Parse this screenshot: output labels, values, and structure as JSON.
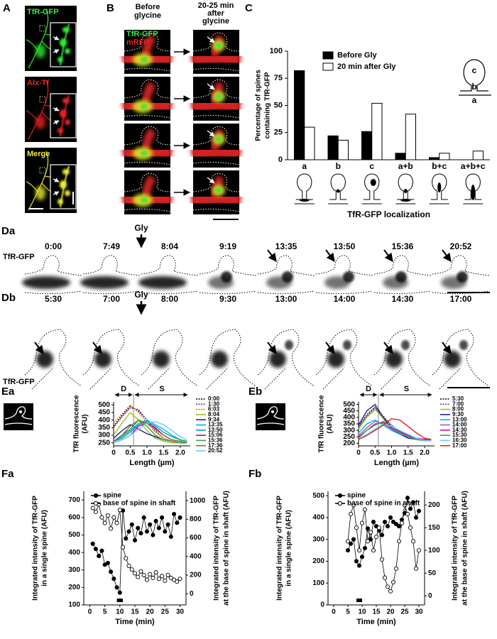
{
  "panels": {
    "A": {
      "label": "A",
      "channels": [
        "TfR-GFP",
        "Alx-Tf",
        "Merge"
      ]
    },
    "B": {
      "label": "B",
      "before": [
        "Before",
        "glycine"
      ],
      "after": [
        "20-25 min",
        "after",
        "glycine"
      ],
      "channels": [
        "TfR-GFP",
        "mRFP"
      ]
    },
    "Da": {
      "label": "Da",
      "times": [
        "0:00",
        "7:49",
        "8:04",
        "9:19",
        "13:35",
        "13:50",
        "15:36",
        "20:52"
      ],
      "treatment": "Gly",
      "channel": "TfR-GFP"
    },
    "Db": {
      "label": "Db",
      "times": [
        "5:30",
        "7:00",
        "8:00",
        "9:30",
        "13:00",
        "14:00",
        "14:30",
        "17:00"
      ],
      "treatment": "Gly",
      "channel": "TfR-GFP"
    }
  },
  "chart_data": [
    {
      "panel": "C",
      "type": "bar",
      "ylabel": [
        "Percentage of spines",
        "containing TfR-GFP"
      ],
      "xlabel": "TfR-GFP localization",
      "categories": [
        "a",
        "b",
        "c",
        "a+b",
        "b+c",
        "a+b+c"
      ],
      "series": [
        {
          "name": "Before Gly",
          "color": "#000000",
          "values": [
            82,
            22,
            26,
            6,
            2,
            0
          ]
        },
        {
          "name": "20 min after Gly",
          "color": "#ffffff",
          "values": [
            30,
            18,
            52,
            42,
            6,
            8
          ]
        }
      ],
      "ylim": [
        0,
        100
      ],
      "yticks": [
        0,
        25,
        50,
        75,
        100
      ],
      "legend": "upper left",
      "annotations": [
        "c",
        "b",
        "a"
      ]
    },
    {
      "panel": "Ea",
      "type": "line",
      "ylabel": [
        "TfR fluorescence",
        "(AFU)"
      ],
      "xlabel": "Length (µm)",
      "x": [
        0,
        0.25,
        0.5,
        0.75,
        1,
        1.25,
        1.5,
        1.75,
        2,
        2.2
      ],
      "series": [
        {
          "name": "0:00",
          "color": "#000000",
          "dashed": true,
          "values": [
            360,
            430,
            490,
            460,
            400,
            330,
            280,
            260,
            250,
            250
          ]
        },
        {
          "name": "1:30",
          "color": "#7030a0",
          "dashed": true,
          "values": [
            350,
            420,
            480,
            470,
            400,
            330,
            280,
            260,
            250,
            250
          ]
        },
        {
          "name": "6:03",
          "color": "#e07b00",
          "dashed": true,
          "values": [
            380,
            440,
            500,
            450,
            380,
            320,
            280,
            260,
            250,
            250
          ]
        },
        {
          "name": "8:04",
          "color": "#a0c020",
          "values": [
            300,
            380,
            450,
            400,
            330,
            280,
            260,
            250,
            250,
            250
          ]
        },
        {
          "name": "9:34",
          "color": "#1f1f9f",
          "values": [
            280,
            330,
            370,
            340,
            310,
            290,
            270,
            260,
            250,
            250
          ]
        },
        {
          "name": "13:35",
          "color": "#00b0f0",
          "values": [
            260,
            290,
            330,
            380,
            400,
            370,
            340,
            300,
            270,
            260
          ]
        },
        {
          "name": "13:50",
          "color": "#00a0a0",
          "values": [
            260,
            280,
            320,
            370,
            390,
            360,
            320,
            290,
            270,
            260
          ]
        },
        {
          "name": "15:06",
          "color": "#c000c0",
          "values": [
            250,
            270,
            300,
            360,
            380,
            350,
            300,
            270,
            260,
            250
          ]
        },
        {
          "name": "15:36",
          "color": "#40a040",
          "values": [
            260,
            300,
            340,
            400,
            360,
            300,
            270,
            260,
            250,
            250
          ]
        },
        {
          "name": "17:36",
          "color": "#8a6d1f",
          "values": [
            260,
            300,
            360,
            400,
            380,
            340,
            300,
            270,
            260,
            250
          ]
        },
        {
          "name": "20:52",
          "color": "#66ccff",
          "values": [
            250,
            270,
            300,
            340,
            380,
            390,
            370,
            330,
            290,
            270
          ]
        }
      ],
      "xlim": [
        0,
        2.3
      ],
      "xticks": [
        0,
        0.5,
        {
          "value": 1,
          "label": "1.0"
        },
        1.5,
        {
          "value": 2,
          "label": "2.0"
        }
      ],
      "ylim": [
        230,
        520
      ],
      "yticks": [
        250,
        300,
        350,
        400,
        450,
        500
      ],
      "divider": 0.6,
      "annotations": [
        "D",
        "S"
      ],
      "legend": "right"
    },
    {
      "panel": "Eb",
      "type": "line",
      "ylabel": [
        "TfR fluorescence",
        "(AFU)"
      ],
      "xlabel": "Length (µm)",
      "x": [
        0,
        0.25,
        0.5,
        0.75,
        1,
        1.25,
        1.5,
        1.75,
        2,
        2.2
      ],
      "series": [
        {
          "name": "5:30",
          "color": "#000000",
          "dashed": true,
          "values": [
            330,
            420,
            480,
            400,
            330,
            290,
            260,
            240,
            230,
            230
          ]
        },
        {
          "name": "7:00",
          "color": "#7030a0",
          "dashed": true,
          "values": [
            320,
            410,
            470,
            410,
            340,
            290,
            260,
            240,
            230,
            230
          ]
        },
        {
          "name": "8:00",
          "color": "#a0c020",
          "values": [
            310,
            400,
            460,
            390,
            320,
            280,
            250,
            240,
            230,
            230
          ]
        },
        {
          "name": "9:30",
          "color": "#1f1f9f",
          "values": [
            340,
            450,
            500,
            400,
            310,
            270,
            240,
            230,
            220,
            220
          ]
        },
        {
          "name": "13:00",
          "color": "#00b0f0",
          "values": [
            280,
            350,
            380,
            340,
            300,
            270,
            250,
            230,
            220,
            220
          ]
        },
        {
          "name": "14:00",
          "color": "#9b59b6",
          "values": [
            260,
            320,
            370,
            350,
            310,
            280,
            260,
            240,
            220,
            220
          ]
        },
        {
          "name": "14:30",
          "color": "#e000a0",
          "values": [
            250,
            300,
            350,
            360,
            320,
            290,
            260,
            240,
            230,
            220
          ]
        },
        {
          "name": "15:30",
          "color": "#40a040",
          "values": [
            240,
            300,
            340,
            370,
            330,
            280,
            250,
            230,
            220,
            220
          ]
        },
        {
          "name": "16:30",
          "color": "#66ccff",
          "values": [
            230,
            270,
            310,
            350,
            330,
            300,
            270,
            240,
            220,
            220
          ]
        },
        {
          "name": "17:00",
          "color": "#e02020",
          "values": [
            230,
            260,
            300,
            340,
            390,
            380,
            330,
            280,
            240,
            230
          ]
        }
      ],
      "xlim": [
        0,
        2.3
      ],
      "xticks": [
        0,
        0.5,
        {
          "value": 1,
          "label": "1.0"
        },
        1.5,
        {
          "value": 2,
          "label": "2.0"
        }
      ],
      "ylim": [
        180,
        520
      ],
      "yticks": [
        200,
        250,
        300,
        350,
        400,
        450,
        500
      ],
      "divider": 0.6,
      "annotations": [
        "D",
        "S"
      ],
      "legend": "right"
    },
    {
      "panel": "Fa",
      "type": "line",
      "ylabel": [
        "Integrated intensity of TfR-GFP",
        "in a single spine (AFU)"
      ],
      "y2label": [
        "Integrated intensity of TfR-GFP",
        "at the base of spine in shaft (AFU)"
      ],
      "xlabel": "Time (min)",
      "x": [
        1,
        2,
        3,
        4,
        5,
        6,
        7,
        8,
        9,
        10,
        11,
        12,
        13,
        14,
        15,
        16,
        17,
        18,
        19,
        20,
        21,
        22,
        23,
        24,
        25,
        26,
        27,
        28,
        29,
        30
      ],
      "series": [
        {
          "name": "spine",
          "color": "#000000",
          "marker": "filled",
          "values": [
            450,
            420,
            380,
            410,
            330,
            340,
            290,
            250,
            200,
            170,
            640,
            480,
            520,
            560,
            470,
            540,
            510,
            600,
            520,
            560,
            500,
            580,
            540,
            600,
            520,
            560,
            490,
            620,
            570,
            600
          ]
        },
        {
          "name": "base of spine in shaft",
          "color": "#000000",
          "marker": "open",
          "axis": "y2",
          "values": [
            920,
            880,
            960,
            820,
            760,
            840,
            700,
            820,
            760,
            900,
            500,
            380,
            300,
            260,
            220,
            180,
            240,
            200,
            150,
            210,
            170,
            230,
            160,
            190,
            140,
            200,
            170,
            150,
            130,
            160
          ]
        }
      ],
      "xlim": [
        -2,
        32
      ],
      "xticks": [
        0,
        5,
        10,
        15,
        20,
        25,
        30
      ],
      "ylim": [
        100,
        750
      ],
      "yticks": [
        100,
        200,
        300,
        400,
        500,
        600,
        700
      ],
      "y2lim": [
        -120,
        1100
      ],
      "y2ticks": [
        0,
        200,
        400,
        600,
        800,
        1000
      ],
      "legend": "upper left",
      "treatment_window": [
        9,
        11
      ]
    },
    {
      "panel": "Fb",
      "type": "line",
      "ylabel": [
        "Integrated intensity of TfR-GFP",
        "in a single spine (AFU)"
      ],
      "y2label": [
        "Integrated intensity of TfR-GFP",
        "at the base of spine in shaft (AFU)"
      ],
      "xlabel": "Time (min)",
      "x": [
        5,
        6,
        7,
        8,
        9,
        10,
        11,
        12,
        13,
        14,
        15,
        16,
        17,
        18,
        19,
        20,
        21,
        22,
        23,
        24,
        25,
        26,
        27,
        28,
        29,
        30
      ],
      "series": [
        {
          "name": "spine",
          "color": "#000000",
          "marker": "filled",
          "values": [
            250,
            280,
            300,
            200,
            180,
            220,
            260,
            350,
            300,
            380,
            360,
            340,
            320,
            380,
            360,
            400,
            380,
            370,
            360,
            390,
            420,
            490,
            440,
            470,
            400,
            430
          ]
        },
        {
          "name": "base of spine in shaft",
          "color": "#000000",
          "marker": "open",
          "axis": "y2",
          "values": [
            120,
            180,
            200,
            150,
            100,
            160,
            190,
            120,
            140,
            100,
            130,
            150,
            80,
            40,
            20,
            10,
            30,
            60,
            120,
            160,
            200,
            180,
            150,
            120,
            60,
            100
          ]
        }
      ],
      "xlim": [
        -2,
        32
      ],
      "xticks": [
        0,
        5,
        10,
        15,
        20,
        25,
        30
      ],
      "ylim": [
        0,
        520
      ],
      "yticks": [
        0,
        100,
        200,
        300,
        400,
        500
      ],
      "y2lim": [
        -20,
        230
      ],
      "y2ticks": [
        0,
        50,
        100,
        150,
        200
      ],
      "legend": "upper left",
      "treatment_window": [
        8,
        10
      ]
    }
  ]
}
